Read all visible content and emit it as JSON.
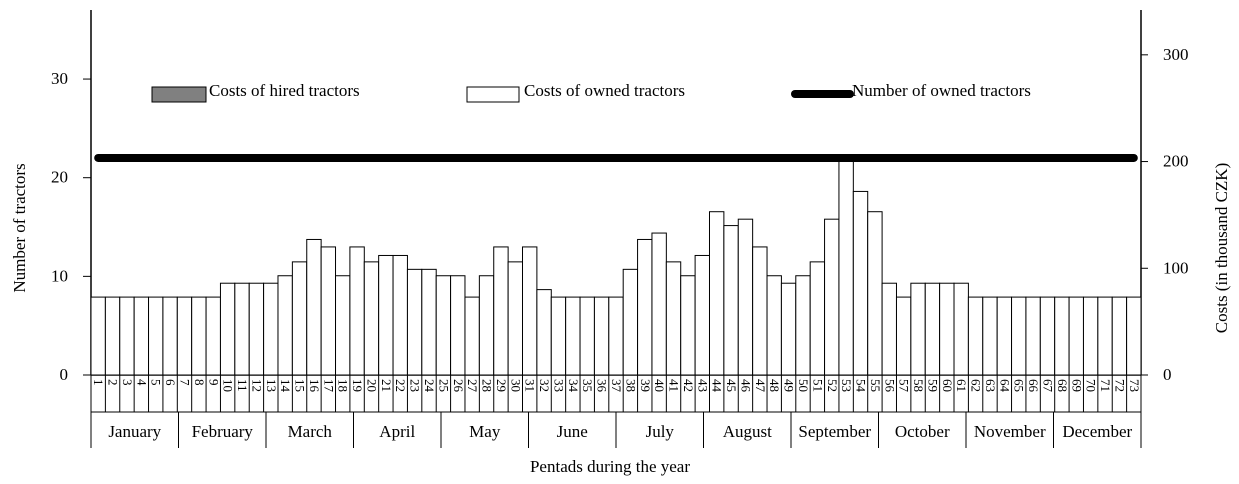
{
  "chart_data": {
    "type": "bar",
    "x_label": "Pentads during the year",
    "y_label": "Number of tractors",
    "y2_label": "Costs  (in thousand CZK)",
    "categories": [
      "1",
      "2",
      "3",
      "4",
      "5",
      "6",
      "7",
      "8",
      "9",
      "10",
      "11",
      "12",
      "13",
      "14",
      "15",
      "16",
      "17",
      "18",
      "19",
      "20",
      "21",
      "22",
      "23",
      "24",
      "25",
      "26",
      "27",
      "28",
      "29",
      "30",
      "31",
      "32",
      "33",
      "34",
      "35",
      "36",
      "37",
      "38",
      "39",
      "40",
      "41",
      "42",
      "43",
      "44",
      "45",
      "46",
      "47",
      "48",
      "49",
      "50",
      "51",
      "52",
      "53",
      "54",
      "55",
      "56",
      "57",
      "58",
      "59",
      "60",
      "61",
      "62",
      "63",
      "64",
      "65",
      "66",
      "67",
      "68",
      "69",
      "70",
      "71",
      "72",
      "73"
    ],
    "months": [
      "January",
      "February",
      "March",
      "April",
      "May",
      "June",
      "July",
      "August",
      "September",
      "October",
      "November",
      "December"
    ],
    "ylim": [
      0,
      37
    ],
    "yticks": [
      0,
      10,
      20,
      30
    ],
    "y2lim": [
      0,
      342
    ],
    "y2ticks": [
      0,
      100,
      200,
      300
    ],
    "series": [
      {
        "name": "Costs of hired tractors",
        "color": "#808080",
        "axis": "y2",
        "values": [
          0,
          0,
          0,
          0,
          0,
          0,
          0,
          0,
          0,
          0,
          0,
          0,
          0,
          0,
          0,
          0,
          0,
          0,
          0,
          0,
          0,
          0,
          0,
          0,
          0,
          0,
          0,
          0,
          0,
          0,
          0,
          0,
          0,
          0,
          0,
          0,
          0,
          0,
          0,
          0,
          0,
          0,
          0,
          0,
          0,
          0,
          0,
          0,
          0,
          0,
          0,
          0,
          0,
          0,
          0,
          0,
          0,
          0,
          0,
          0,
          0,
          0,
          0,
          0,
          0,
          0,
          0,
          0,
          0,
          0,
          0,
          0,
          0
        ]
      },
      {
        "name": "Costs of owned tractors",
        "color": "#ffffff",
        "axis": "y2",
        "values": [
          73,
          73,
          73,
          73,
          73,
          73,
          73,
          73,
          73,
          86,
          86,
          86,
          86,
          93,
          106,
          127,
          120,
          93,
          120,
          106,
          112,
          112,
          99,
          99,
          93,
          93,
          73,
          93,
          120,
          106,
          120,
          80,
          73,
          73,
          73,
          73,
          73,
          99,
          127,
          133,
          106,
          93,
          112,
          153,
          140,
          146,
          120,
          93,
          86,
          93,
          106,
          146,
          201,
          172,
          153,
          86,
          73,
          86,
          86,
          86,
          86,
          73,
          73,
          73,
          73,
          73,
          73,
          73,
          73,
          73,
          73,
          73,
          73
        ]
      },
      {
        "name": "Number of owned tractors",
        "type": "line",
        "color": "#000000",
        "axis": "y",
        "values": [
          22,
          22,
          22,
          22,
          22,
          22,
          22,
          22,
          22,
          22,
          22,
          22,
          22,
          22,
          22,
          22,
          22,
          22,
          22,
          22,
          22,
          22,
          22,
          22,
          22,
          22,
          22,
          22,
          22,
          22,
          22,
          22,
          22,
          22,
          22,
          22,
          22,
          22,
          22,
          22,
          22,
          22,
          22,
          22,
          22,
          22,
          22,
          22,
          22,
          22,
          22,
          22,
          22,
          22,
          22,
          22,
          22,
          22,
          22,
          22,
          22,
          22,
          22,
          22,
          22,
          22,
          22,
          22,
          22,
          22,
          22,
          22,
          22
        ]
      }
    ]
  }
}
